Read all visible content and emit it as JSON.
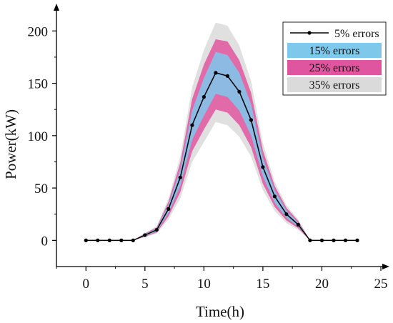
{
  "chart_data": {
    "type": "line",
    "title": "",
    "xlabel": "Time(h)",
    "ylabel": "Power(kW)",
    "xlim": [
      -2.5,
      25
    ],
    "ylim": [
      -25,
      220
    ],
    "x_ticks": [
      0,
      5,
      10,
      15,
      20,
      25
    ],
    "y_ticks": [
      0,
      50,
      100,
      150,
      200
    ],
    "x_tick_labels": [
      "0",
      "5",
      "10",
      "15",
      "20",
      "25"
    ],
    "y_tick_labels": [
      "0",
      "50",
      "100",
      "150",
      "200"
    ],
    "grid": false,
    "legend_position": "top-right",
    "x": [
      0,
      1,
      2,
      3,
      4,
      5,
      6,
      7,
      8,
      9,
      10,
      11,
      12,
      13,
      14,
      15,
      16,
      17,
      18,
      19,
      20,
      21,
      22,
      23
    ],
    "series": [
      {
        "name": "5% errors",
        "kind": "line-with-markers",
        "color": "#000000",
        "values": [
          0,
          0,
          0,
          0,
          0,
          5,
          10,
          30,
          60,
          110,
          137,
          160,
          157,
          142,
          115,
          70,
          42,
          25,
          15,
          0,
          0,
          0,
          0,
          0
        ]
      },
      {
        "name": "15% errors",
        "kind": "band",
        "color": "#7ec8ec",
        "lower": [
          0,
          0,
          0,
          0,
          0,
          4,
          8.5,
          26,
          52,
          96,
          119,
          140,
          137,
          124,
          100,
          61,
          36,
          21.5,
          13,
          0,
          0,
          0,
          0,
          0
        ],
        "upper": [
          0,
          0,
          0,
          0,
          0,
          6,
          11.5,
          34,
          68,
          124,
          155,
          180,
          177,
          160,
          130,
          79,
          48,
          28.5,
          17,
          0,
          0,
          0,
          0,
          0
        ]
      },
      {
        "name": "25% errors",
        "kind": "band",
        "color": "#e0559f",
        "lower": [
          0,
          0,
          0,
          0,
          0,
          3.5,
          7.5,
          23,
          46,
          85,
          106,
          125,
          122,
          110,
          89,
          54,
          32,
          19,
          11.5,
          0,
          0,
          0,
          0,
          0
        ],
        "upper": [
          0,
          0,
          0,
          0,
          0,
          6.5,
          12.5,
          37,
          74,
          135,
          168,
          192,
          190,
          172,
          141,
          86,
          52,
          31,
          18.5,
          0,
          0,
          0,
          0,
          0
        ]
      },
      {
        "name": "35% errors",
        "kind": "band",
        "color": "#dadada",
        "lower": [
          0,
          0,
          0,
          0,
          0,
          3,
          6.5,
          20,
          40,
          75,
          94,
          113,
          110,
          99,
          80,
          48,
          28,
          16.5,
          10,
          0,
          0,
          0,
          0,
          0
        ],
        "upper": [
          0,
          0,
          0,
          0,
          0,
          7,
          13.5,
          40,
          80,
          146,
          182,
          208,
          205,
          186,
          152,
          93,
          56,
          33.5,
          20,
          0,
          0,
          0,
          0,
          0
        ]
      }
    ]
  }
}
